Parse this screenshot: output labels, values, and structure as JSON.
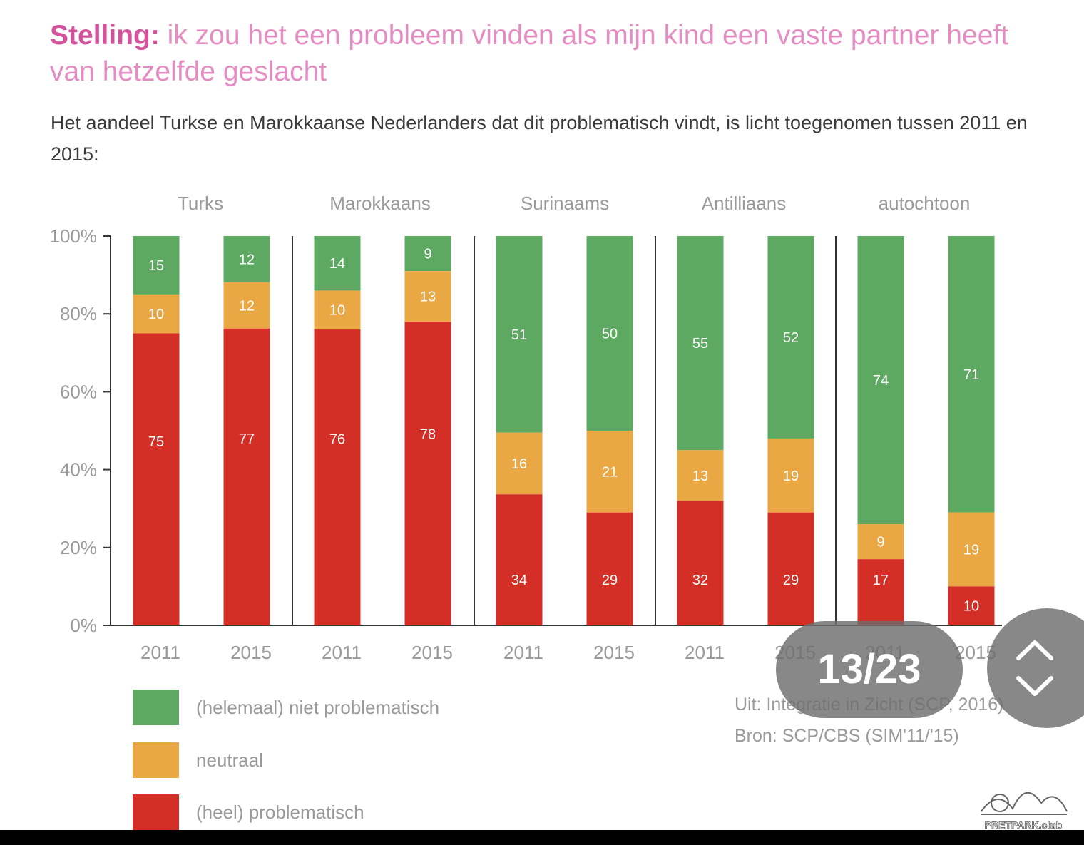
{
  "title": {
    "lead": "Stelling:",
    "text": " ik zou het een probleem vinden als mijn kind een vaste partner heeft van hetzelfde geslacht"
  },
  "subtitle": "Het aandeel Turkse en Marokkaanse Nederlanders dat dit problematisch vindt, is licht toegenomen tussen 2011 en 2015:",
  "colors": {
    "green": "#5ea962",
    "orange": "#e9a843",
    "red": "#d42f27",
    "axis": "#333333",
    "tick_text": "#9a9a9a"
  },
  "chart_data": {
    "type": "bar",
    "stacked": true,
    "y_axis": {
      "ticks": [
        "0%",
        "20%",
        "40%",
        "60%",
        "80%",
        "100%"
      ],
      "ylim": [
        0,
        100
      ]
    },
    "groups": [
      {
        "name": "Turks",
        "bars": [
          {
            "year": "2011",
            "problematisch": 75,
            "neutraal": 10,
            "niet_problematisch": 15
          },
          {
            "year": "2015",
            "problematisch": 77,
            "neutraal": 12,
            "niet_problematisch": 12
          }
        ]
      },
      {
        "name": "Marokkaans",
        "bars": [
          {
            "year": "2011",
            "problematisch": 76,
            "neutraal": 10,
            "niet_problematisch": 14
          },
          {
            "year": "2015",
            "problematisch": 78,
            "neutraal": 13,
            "niet_problematisch": 9
          }
        ]
      },
      {
        "name": "Surinaams",
        "bars": [
          {
            "year": "2011",
            "problematisch": 34,
            "neutraal": 16,
            "niet_problematisch": 51
          },
          {
            "year": "2015",
            "problematisch": 29,
            "neutraal": 21,
            "niet_problematisch": 50
          }
        ]
      },
      {
        "name": "Antilliaans",
        "bars": [
          {
            "year": "2011",
            "problematisch": 32,
            "neutraal": 13,
            "niet_problematisch": 55
          },
          {
            "year": "2015",
            "problematisch": 29,
            "neutraal": 19,
            "niet_problematisch": 52
          }
        ]
      },
      {
        "name": "autochtoon",
        "bars": [
          {
            "year": "2011",
            "problematisch": 17,
            "neutraal": 9,
            "niet_problematisch": 74
          },
          {
            "year": "2015",
            "problematisch": 10,
            "neutraal": 19,
            "niet_problematisch": 71
          }
        ]
      }
    ]
  },
  "legend": [
    {
      "label": "(helemaal) niet problematisch",
      "color": "#5ea962"
    },
    {
      "label": "neutraal",
      "color": "#e9a843"
    },
    {
      "label": "(heel) problematisch",
      "color": "#d42f27"
    }
  ],
  "source": {
    "line1": "Uit: Integratie in Zicht (SCP, 2016)",
    "line2": "Bron: SCP/CBS (SIM'11/'15)"
  },
  "overlay": {
    "page_counter": "13/23"
  },
  "watermark": "PRETPARK.club"
}
